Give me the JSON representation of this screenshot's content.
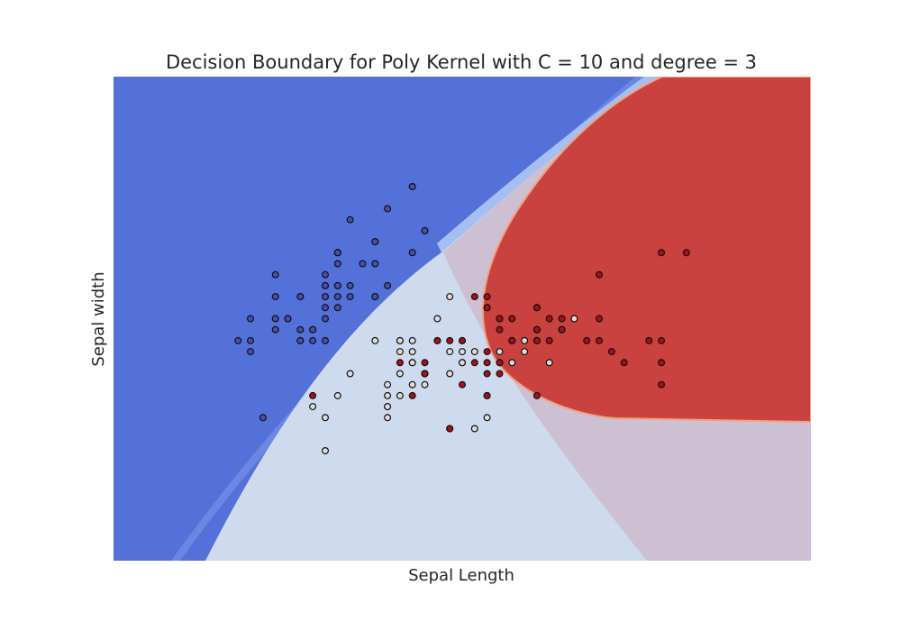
{
  "chart_data": {
    "type": "scatter",
    "title": "Decision Boundary for Poly Kernel with C = 10 and degree = 3",
    "xlabel": "Sepal Length",
    "ylabel": "Sepal width",
    "xlim": [
      3.3,
      8.9
    ],
    "ylim": [
      1.0,
      5.4
    ],
    "xticks_shown": false,
    "yticks_shown": false,
    "grid": false,
    "legend": "none",
    "region_colors": {
      "setosa": "#5470d9",
      "setosa_edge": "#6b86e3",
      "versicolor": "#cedaee",
      "versicolor_edge": "#a6bff2",
      "virginica_overlap": "#ccc0d2",
      "virginica": "#c9423f",
      "virginica_edge": "#f0a27f"
    },
    "point_edge_color": "#111111",
    "series": [
      {
        "class": "setosa",
        "color": "#4a4fae",
        "points": [
          [
            5.1,
            3.5
          ],
          [
            4.9,
            3.0
          ],
          [
            4.7,
            3.2
          ],
          [
            4.6,
            3.1
          ],
          [
            5.0,
            3.6
          ],
          [
            5.4,
            3.9
          ],
          [
            4.6,
            3.4
          ],
          [
            5.0,
            3.4
          ],
          [
            4.4,
            2.9
          ],
          [
            4.9,
            3.1
          ],
          [
            5.4,
            3.7
          ],
          [
            4.8,
            3.4
          ],
          [
            4.8,
            3.0
          ],
          [
            4.3,
            3.0
          ],
          [
            5.8,
            4.0
          ],
          [
            5.7,
            4.4
          ],
          [
            5.4,
            3.9
          ],
          [
            5.1,
            3.5
          ],
          [
            5.7,
            3.8
          ],
          [
            5.1,
            3.8
          ],
          [
            5.4,
            3.4
          ],
          [
            5.1,
            3.7
          ],
          [
            4.6,
            3.6
          ],
          [
            5.1,
            3.3
          ],
          [
            4.8,
            3.4
          ],
          [
            5.0,
            3.0
          ],
          [
            5.0,
            3.4
          ],
          [
            5.2,
            3.5
          ],
          [
            5.2,
            3.4
          ],
          [
            4.7,
            3.2
          ],
          [
            4.8,
            3.1
          ],
          [
            5.4,
            3.4
          ],
          [
            5.2,
            4.1
          ],
          [
            5.5,
            4.2
          ],
          [
            4.9,
            3.1
          ],
          [
            5.0,
            3.2
          ],
          [
            5.5,
            3.5
          ],
          [
            4.4,
            3.0
          ],
          [
            5.1,
            3.4
          ],
          [
            5.0,
            3.5
          ],
          [
            4.5,
            2.3
          ],
          [
            4.4,
            3.2
          ],
          [
            5.0,
            3.5
          ],
          [
            5.1,
            3.8
          ],
          [
            4.8,
            3.0
          ],
          [
            5.1,
            3.8
          ],
          [
            4.6,
            3.2
          ],
          [
            5.3,
            3.7
          ],
          [
            5.0,
            3.3
          ]
        ]
      },
      {
        "class": "versicolor",
        "color": "#dcdcdc",
        "points": [
          [
            7.0,
            3.2
          ],
          [
            6.4,
            3.2
          ],
          [
            6.9,
            3.1
          ],
          [
            5.5,
            2.3
          ],
          [
            6.5,
            2.8
          ],
          [
            5.7,
            2.8
          ],
          [
            6.3,
            3.3
          ],
          [
            4.9,
            2.4
          ],
          [
            6.6,
            2.9
          ],
          [
            5.2,
            2.7
          ],
          [
            5.0,
            2.0
          ],
          [
            5.9,
            3.0
          ],
          [
            6.0,
            2.2
          ],
          [
            6.1,
            2.9
          ],
          [
            5.6,
            2.9
          ],
          [
            6.7,
            3.1
          ],
          [
            5.6,
            3.0
          ],
          [
            5.8,
            2.7
          ],
          [
            6.2,
            2.2
          ],
          [
            5.6,
            2.5
          ],
          [
            5.9,
            3.2
          ],
          [
            6.1,
            2.8
          ],
          [
            6.3,
            2.5
          ],
          [
            6.1,
            2.8
          ],
          [
            6.4,
            2.9
          ],
          [
            6.6,
            3.0
          ],
          [
            6.8,
            2.8
          ],
          [
            6.7,
            3.0
          ],
          [
            6.0,
            2.9
          ],
          [
            5.7,
            2.6
          ],
          [
            5.5,
            2.4
          ],
          [
            5.5,
            2.4
          ],
          [
            5.8,
            2.7
          ],
          [
            6.0,
            2.7
          ],
          [
            5.4,
            3.0
          ],
          [
            6.0,
            3.4
          ],
          [
            6.7,
            3.1
          ],
          [
            6.3,
            2.3
          ],
          [
            5.6,
            3.0
          ],
          [
            5.5,
            2.5
          ],
          [
            5.5,
            2.6
          ],
          [
            6.1,
            3.0
          ],
          [
            5.8,
            2.6
          ],
          [
            5.0,
            2.3
          ],
          [
            5.6,
            2.7
          ],
          [
            5.7,
            3.0
          ],
          [
            5.7,
            2.9
          ],
          [
            6.2,
            2.9
          ],
          [
            5.1,
            2.5
          ],
          [
            5.7,
            2.8
          ]
        ]
      },
      {
        "class": "virginica",
        "color": "#a8101b",
        "points": [
          [
            6.3,
            3.3
          ],
          [
            5.8,
            2.7
          ],
          [
            7.1,
            3.0
          ],
          [
            6.3,
            2.9
          ],
          [
            6.5,
            3.0
          ],
          [
            7.6,
            3.0
          ],
          [
            4.9,
            2.5
          ],
          [
            7.3,
            2.9
          ],
          [
            6.7,
            2.5
          ],
          [
            7.2,
            3.6
          ],
          [
            6.5,
            3.2
          ],
          [
            6.4,
            2.7
          ],
          [
            6.8,
            3.0
          ],
          [
            5.7,
            2.5
          ],
          [
            5.8,
            2.8
          ],
          [
            6.4,
            3.2
          ],
          [
            6.5,
            3.0
          ],
          [
            7.7,
            3.8
          ],
          [
            7.7,
            2.6
          ],
          [
            6.0,
            2.2
          ],
          [
            6.9,
            3.2
          ],
          [
            5.6,
            2.8
          ],
          [
            7.7,
            2.8
          ],
          [
            6.3,
            2.7
          ],
          [
            6.7,
            3.3
          ],
          [
            7.2,
            3.2
          ],
          [
            6.2,
            2.8
          ],
          [
            6.1,
            3.0
          ],
          [
            6.4,
            2.8
          ],
          [
            7.2,
            3.0
          ],
          [
            7.4,
            2.8
          ],
          [
            7.9,
            3.8
          ],
          [
            6.4,
            2.8
          ],
          [
            6.3,
            2.8
          ],
          [
            6.1,
            2.6
          ],
          [
            7.7,
            3.0
          ],
          [
            6.3,
            3.4
          ],
          [
            6.4,
            3.1
          ],
          [
            6.0,
            3.0
          ],
          [
            6.9,
            3.1
          ],
          [
            6.7,
            3.1
          ],
          [
            6.9,
            3.1
          ],
          [
            5.8,
            2.7
          ],
          [
            6.8,
            3.2
          ],
          [
            6.7,
            3.3
          ],
          [
            6.7,
            3.0
          ],
          [
            6.3,
            2.5
          ],
          [
            6.5,
            3.0
          ],
          [
            6.2,
            3.4
          ],
          [
            5.9,
            3.0
          ]
        ]
      }
    ]
  }
}
